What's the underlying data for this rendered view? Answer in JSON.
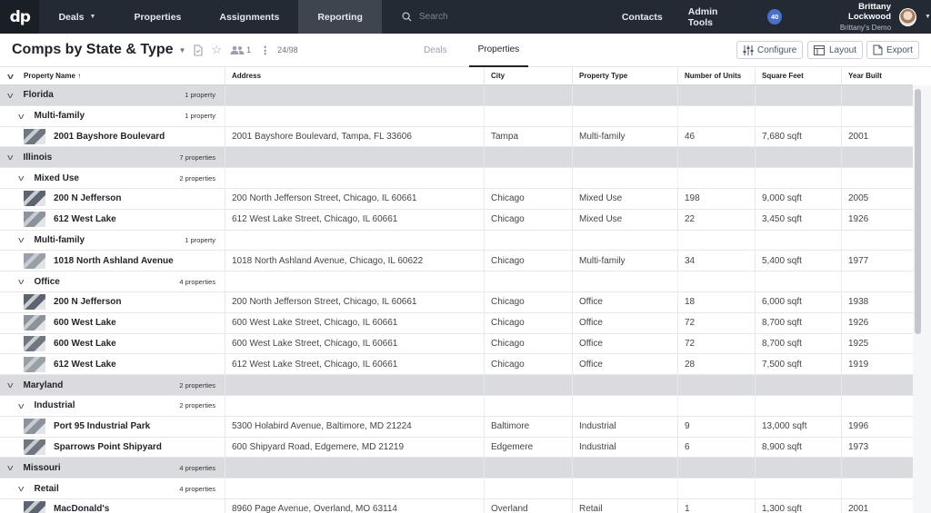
{
  "nav": {
    "logo_text": "dp",
    "items": [
      {
        "label": "Deals",
        "has_caret": true
      },
      {
        "label": "Properties"
      },
      {
        "label": "Assignments"
      },
      {
        "label": "Reporting",
        "active": true
      }
    ],
    "search_placeholder": "Search",
    "right_items": [
      {
        "label": "Contacts"
      },
      {
        "label": "Admin Tools"
      }
    ],
    "notification_count": "40",
    "user_name": "Brittany Lockwood",
    "user_sub": "Brittany's Demo"
  },
  "subheader": {
    "title": "Comps by State & Type",
    "shared_count": "1",
    "record_count": "24/98",
    "tabs": [
      {
        "label": "Deals"
      },
      {
        "label": "Properties",
        "active": true
      }
    ],
    "configure_label": "Configure",
    "layout_label": "Layout",
    "export_label": "Export"
  },
  "columns": [
    "Property Name ↑",
    "Address",
    "City",
    "Property Type",
    "Number of Units",
    "Square Feet",
    "Year Built"
  ],
  "rows": [
    {
      "kind": "g1",
      "name": "Florida",
      "count": "1 property"
    },
    {
      "kind": "g2",
      "name": "Multi-family",
      "count": "1 property"
    },
    {
      "kind": "d",
      "name": "2001 Bayshore Boulevard",
      "address": "2001 Bayshore Boulevard, Tampa, FL 33606",
      "city": "Tampa",
      "type": "Multi-family",
      "units": "46",
      "sqft": "7,680 sqft",
      "year": "2001"
    },
    {
      "kind": "g1",
      "name": "Illinois",
      "count": "7 properties"
    },
    {
      "kind": "g2",
      "name": "Mixed Use",
      "count": "2 properties"
    },
    {
      "kind": "d",
      "name": "200 N Jefferson",
      "address": "200 North Jefferson Street, Chicago, IL 60661",
      "city": "Chicago",
      "type": "Mixed Use",
      "units": "198",
      "sqft": "9,000 sqft",
      "year": "2005"
    },
    {
      "kind": "d",
      "name": "612 West Lake",
      "address": "612 West Lake Street, Chicago, IL 60661",
      "city": "Chicago",
      "type": "Mixed Use",
      "units": "22",
      "sqft": "3,450 sqft",
      "year": "1926"
    },
    {
      "kind": "g2",
      "name": "Multi-family",
      "count": "1 property"
    },
    {
      "kind": "d",
      "name": "1018 North Ashland Avenue",
      "address": "1018 North Ashland Avenue, Chicago, IL 60622",
      "city": "Chicago",
      "type": "Multi-family",
      "units": "34",
      "sqft": "5,400 sqft",
      "year": "1977"
    },
    {
      "kind": "g2",
      "name": "Office",
      "count": "4 properties"
    },
    {
      "kind": "d",
      "name": "200 N Jefferson",
      "address": "200 North Jefferson Street, Chicago, IL 60661",
      "city": "Chicago",
      "type": "Office",
      "units": "18",
      "sqft": "6,000 sqft",
      "year": "1938"
    },
    {
      "kind": "d",
      "name": "600 West Lake",
      "address": "600 West Lake Street, Chicago, IL 60661",
      "city": "Chicago",
      "type": "Office",
      "units": "72",
      "sqft": "8,700 sqft",
      "year": "1926"
    },
    {
      "kind": "d",
      "name": "600 West Lake",
      "address": "600 West Lake Street, Chicago, IL 60661",
      "city": "Chicago",
      "type": "Office",
      "units": "72",
      "sqft": "8,700 sqft",
      "year": "1925"
    },
    {
      "kind": "d",
      "name": "612 West Lake",
      "address": "612 West Lake Street, Chicago, IL 60661",
      "city": "Chicago",
      "type": "Office",
      "units": "28",
      "sqft": "7,500 sqft",
      "year": "1919"
    },
    {
      "kind": "g1",
      "name": "Maryland",
      "count": "2 properties"
    },
    {
      "kind": "g2",
      "name": "Industrial",
      "count": "2 properties"
    },
    {
      "kind": "d",
      "name": "Port 95 Industrial Park",
      "address": "5300 Holabird Avenue, Baltimore, MD 21224",
      "city": "Baltimore",
      "type": "Industrial",
      "units": "9",
      "sqft": "13,000 sqft",
      "year": "1996"
    },
    {
      "kind": "d",
      "name": "Sparrows Point Shipyard",
      "address": "600 Shipyard Road, Edgemere, MD 21219",
      "city": "Edgemere",
      "type": "Industrial",
      "units": "6",
      "sqft": "8,900 sqft",
      "year": "1973"
    },
    {
      "kind": "g1",
      "name": "Missouri",
      "count": "4 properties"
    },
    {
      "kind": "g2",
      "name": "Retail",
      "count": "4 properties"
    },
    {
      "kind": "d",
      "name": "MacDonald's",
      "address": "8960 Page Avenue, Overland, MO 63114",
      "city": "Overland",
      "type": "Retail",
      "units": "1",
      "sqft": "1,300 sqft",
      "year": "2001"
    }
  ],
  "colors": {
    "nav_bg": "#232a33",
    "group_bg": "#d9dbde",
    "accent": "#4a6fc7"
  }
}
